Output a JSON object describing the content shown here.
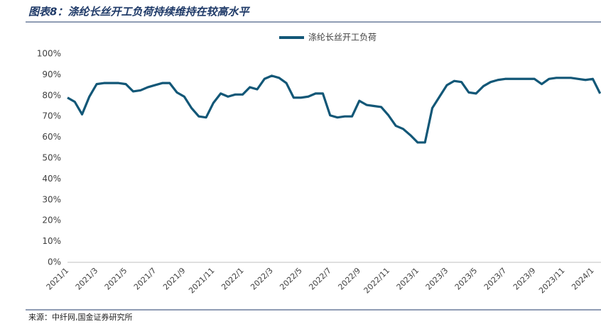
{
  "chart_data": {
    "type": "line",
    "title": "图表8：涤纶长丝开工负荷持续维持在较高水平",
    "source": "来源：中纤网,国金证券研究所",
    "categories": [
      "2021/1",
      null,
      null,
      null,
      "2021/3",
      null,
      null,
      null,
      "2021/5",
      null,
      null,
      null,
      "2021/7",
      null,
      null,
      null,
      "2021/9",
      null,
      null,
      null,
      "2021/11",
      null,
      null,
      null,
      "2022/1",
      null,
      null,
      null,
      "2022/3",
      null,
      null,
      null,
      "2022/5",
      null,
      null,
      null,
      "2022/7",
      null,
      null,
      null,
      "2022/9",
      null,
      null,
      null,
      "2022/11",
      null,
      null,
      null,
      "2023/1",
      null,
      null,
      null,
      "2023/3",
      null,
      null,
      null,
      "2023/5",
      null,
      null,
      null,
      "2023/7",
      null,
      null,
      null,
      "2023/9",
      null,
      null,
      null,
      "2023/11",
      null,
      null,
      null,
      "2024/1",
      null
    ],
    "series": [
      {
        "name": "涤纶长丝开工负荷",
        "color": "#125777",
        "values": [
          79,
          77,
          71,
          79.5,
          85.5,
          86,
          86,
          86,
          85.5,
          82,
          82.5,
          84,
          85,
          86,
          86,
          81.5,
          79.5,
          74,
          70,
          69.5,
          76.5,
          81,
          79.5,
          80.5,
          80.5,
          84,
          83,
          88,
          89.5,
          88.5,
          86,
          79,
          79,
          79.5,
          81,
          81,
          70.5,
          69.5,
          70,
          70,
          77.5,
          75.5,
          75,
          74.5,
          70.5,
          65.5,
          64,
          61,
          57.5,
          57.5,
          74,
          79.5,
          85,
          87,
          86.5,
          81.5,
          81,
          84.5,
          86.5,
          87.5,
          88,
          88,
          88,
          88,
          88,
          85.5,
          88,
          88.5,
          88.5,
          88.5,
          88,
          87.5,
          88,
          81
        ]
      }
    ],
    "ylim": [
      0,
      100
    ],
    "yticks": [
      {
        "value": 0,
        "label": "0%"
      },
      {
        "value": 10,
        "label": "10%"
      },
      {
        "value": 20,
        "label": "20%"
      },
      {
        "value": 30,
        "label": "30%"
      },
      {
        "value": 40,
        "label": "40%"
      },
      {
        "value": 50,
        "label": "50%"
      },
      {
        "value": 60,
        "label": "60%"
      },
      {
        "value": 70,
        "label": "70%"
      },
      {
        "value": 80,
        "label": "80%"
      },
      {
        "value": 90,
        "label": "90%"
      },
      {
        "value": 100,
        "label": "100%"
      }
    ],
    "grid": false
  }
}
